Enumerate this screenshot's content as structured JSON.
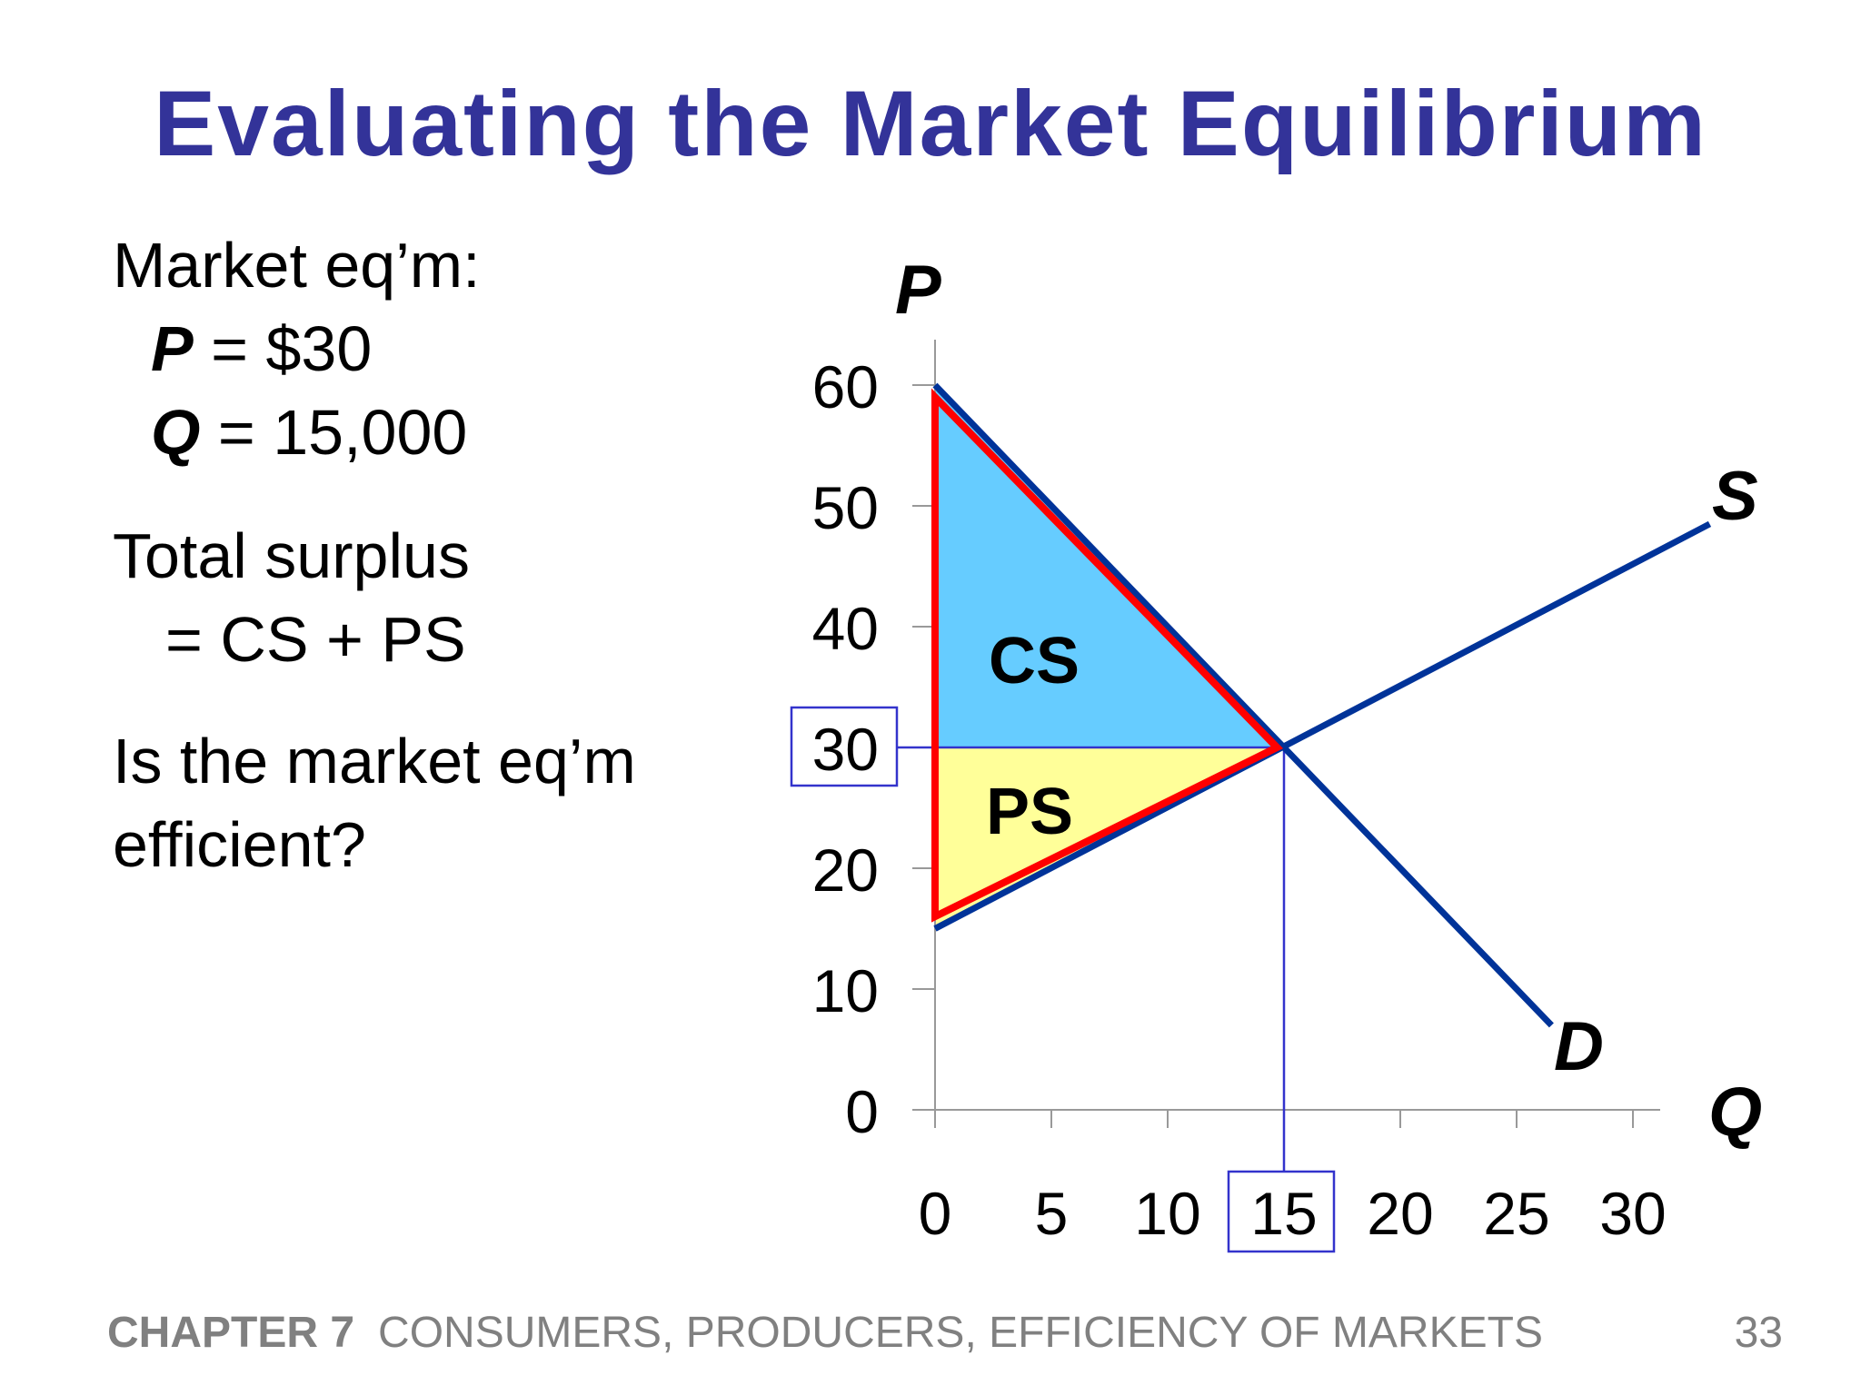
{
  "slide": {
    "title": "Evaluating the Market Equilibrium",
    "left_text": {
      "eqm_heading": "Market eq’m:",
      "p_sym": "P",
      "p_val": " = $30",
      "q_sym": "Q",
      "q_val": " = 15,000",
      "surplus_line1": "Total surplus",
      "surplus_line2": "=  CS + PS",
      "question_line1": "Is the market eq’m",
      "question_line2": "efficient?"
    },
    "footer": {
      "chapter": "CHAPTER 7",
      "chapter_title": "CONSUMERS, PRODUCERS, EFFICIENCY OF MARKETS",
      "page": "33"
    }
  },
  "colors": {
    "title": "#333399",
    "curve": "#003399",
    "outline": "#ff0000",
    "cs_fill": "#66ccff",
    "ps_fill": "#ffff99",
    "guide": "#3333cc",
    "footer": "#808080"
  },
  "chart_data": {
    "type": "line",
    "title": "",
    "xlabel": "Q",
    "ylabel": "P",
    "xlim": [
      0,
      30
    ],
    "ylim": [
      0,
      60
    ],
    "x_ticks": [
      0,
      5,
      10,
      15,
      20,
      25,
      30
    ],
    "y_ticks": [
      0,
      10,
      20,
      30,
      40,
      50,
      60
    ],
    "x_tick_labels": [
      "0",
      "5",
      "10",
      "15",
      "20",
      "25",
      "30"
    ],
    "y_tick_labels": [
      "0",
      "10",
      "20",
      "30",
      "40",
      "50",
      60
    ],
    "series": [
      {
        "name": "D",
        "points": [
          [
            0,
            60
          ],
          [
            26.5,
            7
          ]
        ]
      },
      {
        "name": "S",
        "points": [
          [
            0,
            15
          ],
          [
            33.3,
            48.5
          ]
        ]
      }
    ],
    "equilibrium": {
      "q": 15,
      "p": 30
    },
    "regions": [
      {
        "label": "CS",
        "points": [
          [
            0,
            60
          ],
          [
            0,
            30
          ],
          [
            15,
            30
          ]
        ]
      },
      {
        "label": "PS",
        "points": [
          [
            0,
            30
          ],
          [
            0,
            15
          ],
          [
            15,
            30
          ]
        ]
      }
    ],
    "highlighted_ticks": {
      "x": "15",
      "y": "30"
    },
    "grid": false,
    "legend": "none"
  }
}
